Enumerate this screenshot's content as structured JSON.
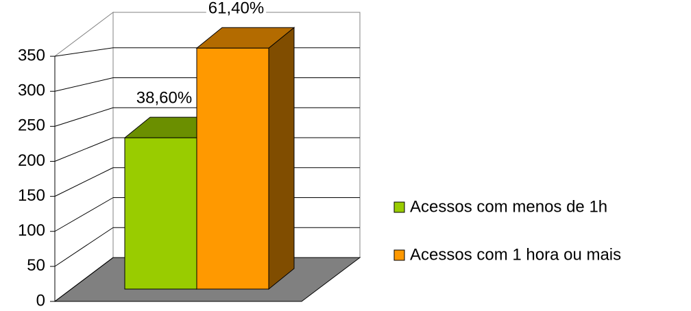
{
  "chart_data": {
    "type": "bar3d",
    "series": [
      {
        "name": "Acessos com menos de 1h",
        "color": "#99cc00",
        "values": [
          216
        ],
        "value_labels": [
          "38,60%"
        ]
      },
      {
        "name": "Acessos com 1 hora ou mais",
        "color": "#ff9900",
        "values": [
          344
        ],
        "value_labels": [
          "61,40%"
        ]
      }
    ],
    "ylim": [
      0,
      400
    ],
    "yticks": [
      0,
      50,
      100,
      150,
      200,
      250,
      300,
      350
    ],
    "grid": true,
    "legend": "right"
  }
}
